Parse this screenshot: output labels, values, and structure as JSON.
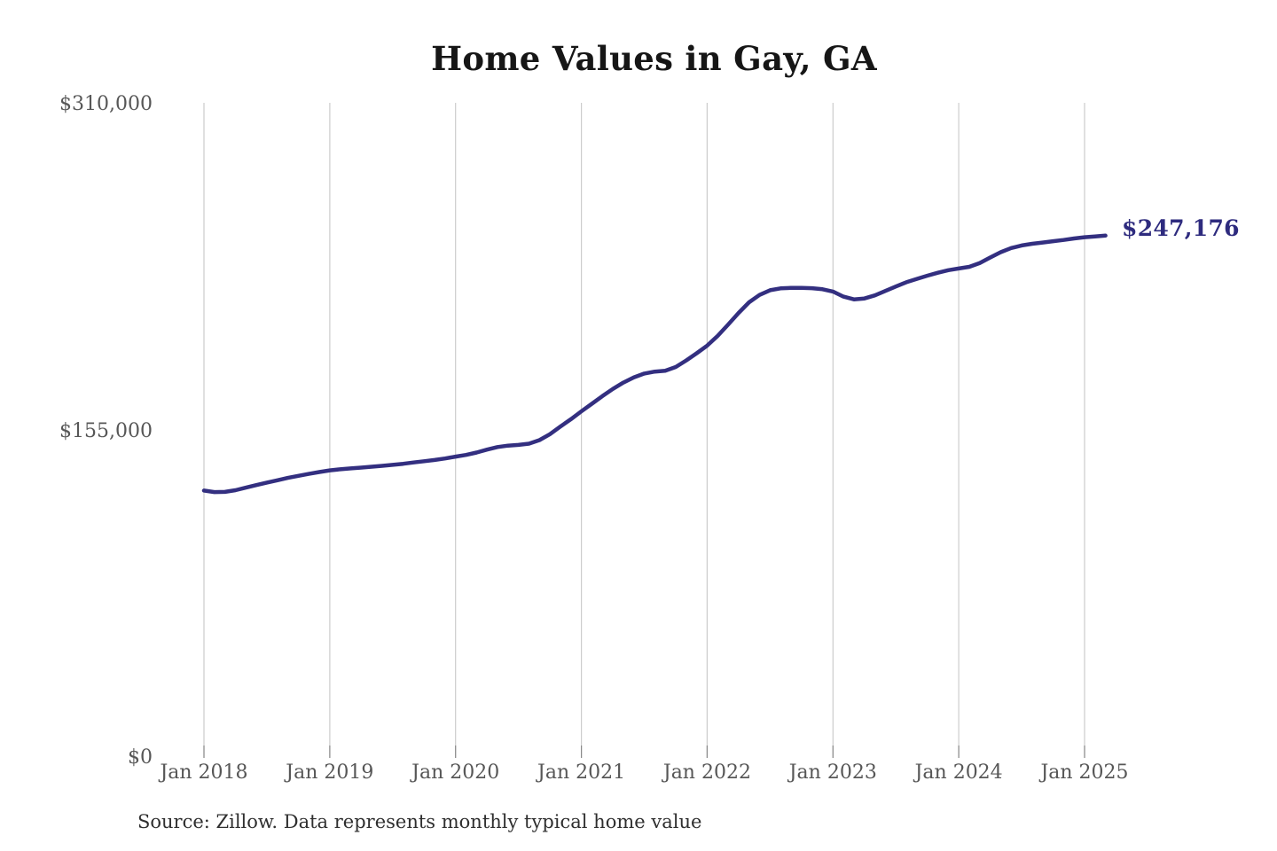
{
  "header": {
    "title": "Home Values in Gay, GA"
  },
  "footer": {
    "source_note": "Source: Zillow. Data represents monthly typical home value"
  },
  "colors": {
    "line": "#332f80",
    "end_label": "#2e2b7e",
    "gridline": "#cccccc",
    "tick": "#8a8a8a",
    "axis_text": "#575757",
    "title_text": "#161616",
    "background": "#ffffff"
  },
  "chart_data": {
    "type": "line",
    "title": "Home Values in Gay, GA",
    "xlabel": "",
    "ylabel": "",
    "ylim": [
      0,
      310000
    ],
    "grid": "vertical-only",
    "legend": "none",
    "end_label": "$247,176",
    "y_tick_labels": [
      "$0",
      "$155,000",
      "$310,000"
    ],
    "y_tick_values": [
      0,
      155000,
      310000
    ],
    "x_tick_labels": [
      "Jan 2018",
      "Jan 2019",
      "Jan 2020",
      "Jan 2021",
      "Jan 2022",
      "Jan 2023",
      "Jan 2024",
      "Jan 2025"
    ],
    "x": [
      "2018-01",
      "2018-02",
      "2018-03",
      "2018-04",
      "2018-05",
      "2018-06",
      "2018-07",
      "2018-08",
      "2018-09",
      "2018-10",
      "2018-11",
      "2018-12",
      "2019-01",
      "2019-02",
      "2019-03",
      "2019-04",
      "2019-05",
      "2019-06",
      "2019-07",
      "2019-08",
      "2019-09",
      "2019-10",
      "2019-11",
      "2019-12",
      "2020-01",
      "2020-02",
      "2020-03",
      "2020-04",
      "2020-05",
      "2020-06",
      "2020-07",
      "2020-08",
      "2020-09",
      "2020-10",
      "2020-11",
      "2020-12",
      "2021-01",
      "2021-02",
      "2021-03",
      "2021-04",
      "2021-05",
      "2021-06",
      "2021-07",
      "2021-08",
      "2021-09",
      "2021-10",
      "2021-11",
      "2021-12",
      "2022-01",
      "2022-02",
      "2022-03",
      "2022-04",
      "2022-05",
      "2022-06",
      "2022-07",
      "2022-08",
      "2022-09",
      "2022-10",
      "2022-11",
      "2022-12",
      "2023-01",
      "2023-02",
      "2023-03",
      "2023-04",
      "2023-05",
      "2023-06",
      "2023-07",
      "2023-08",
      "2023-09",
      "2023-10",
      "2023-11",
      "2023-12",
      "2024-01",
      "2024-02",
      "2024-03",
      "2024-04",
      "2024-05",
      "2024-06",
      "2024-07",
      "2024-08",
      "2024-09",
      "2024-10",
      "2024-11",
      "2024-12",
      "2025-01",
      "2025-02",
      "2025-03"
    ],
    "values": [
      126500,
      125800,
      125900,
      126700,
      127900,
      129100,
      130300,
      131400,
      132500,
      133500,
      134400,
      135300,
      136100,
      136600,
      137000,
      137400,
      137800,
      138200,
      138700,
      139200,
      139800,
      140400,
      141000,
      141700,
      142600,
      143400,
      144500,
      145900,
      147100,
      147800,
      148100,
      148700,
      150400,
      153200,
      156800,
      160300,
      164000,
      167600,
      171200,
      174600,
      177600,
      180100,
      181900,
      182800,
      183200,
      185000,
      188100,
      191500,
      195100,
      199700,
      205100,
      210600,
      215600,
      219100,
      221300,
      222200,
      222400,
      222400,
      222300,
      221800,
      220700,
      218300,
      217000,
      217400,
      218900,
      221000,
      223100,
      225100,
      226700,
      228200,
      229600,
      230800,
      231600,
      232400,
      234200,
      236800,
      239300,
      241300,
      242500,
      243300,
      243900,
      244500,
      245100,
      245800,
      246400,
      246800,
      247176
    ]
  }
}
